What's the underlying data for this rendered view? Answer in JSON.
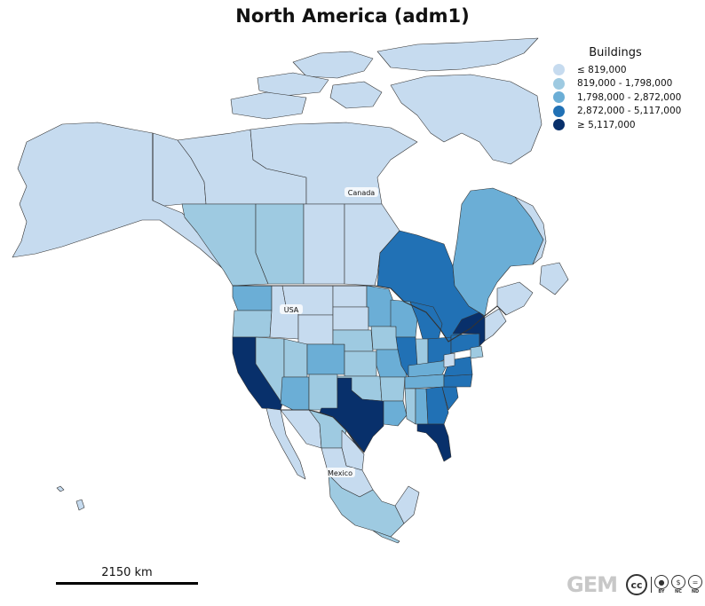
{
  "title": "North America (adm1)",
  "legend": {
    "title": "Buildings",
    "items": [
      {
        "label": "≤ 819,000",
        "color": "#c6dbef"
      },
      {
        "label": "819,000 - 1,798,000",
        "color": "#9ecae1"
      },
      {
        "label": "1,798,000 - 2,872,000",
        "color": "#6baed6"
      },
      {
        "label": "2,872,000 - 5,117,000",
        "color": "#2171b5"
      },
      {
        "label": "≥ 5,117,000",
        "color": "#08306b"
      }
    ]
  },
  "country_labels": {
    "canada": "Canada",
    "usa": "USA",
    "mexico": "Mexico"
  },
  "scale_bar": {
    "label": "2150 km"
  },
  "logos": {
    "gem": "GEM",
    "cc": "cc",
    "license_by": "BY",
    "license_nc": "NC",
    "license_nd": "ND"
  },
  "colors": {
    "border": "#333333",
    "very_low": "#c6dbef",
    "low": "#9ecae1",
    "mid": "#6baed6",
    "high": "#2171b5",
    "very_high": "#08306b"
  }
}
